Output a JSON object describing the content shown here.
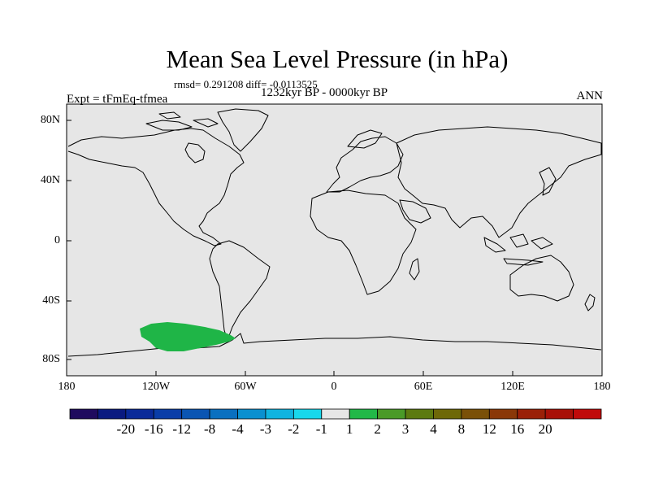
{
  "title": "Mean Sea Level Pressure (in hPa)",
  "stats": "rmsd= 0.291208 diff= -0.0113525",
  "period": "1232kyr BP - 0000kyr BP",
  "experiment": "Expt = tFmEq-tfmea",
  "season": "ANN",
  "map": {
    "projection": "cylindrical equidistant",
    "lon_range": [
      -180,
      180
    ],
    "lat_range": [
      -90,
      90
    ],
    "lat_ticks": [
      "80N",
      "40N",
      "0",
      "40S",
      "80S"
    ],
    "lon_ticks": [
      "180",
      "120W",
      "60W",
      "0",
      "60E",
      "120E",
      "180"
    ],
    "background_color": "#e6e6e6",
    "anomaly_region": {
      "description": "positive anomaly over Amundsen/Bellingshausen Sea",
      "value_bin": "1 to 2",
      "color": "#1fb547"
    }
  },
  "colorbar": {
    "labels": [
      "-20",
      "-16",
      "-12",
      "-8",
      "-4",
      "-3",
      "-2",
      "-1",
      "1",
      "2",
      "3",
      "4",
      "8",
      "12",
      "16",
      "20"
    ],
    "colors": [
      "#1f0a5e",
      "#0a1a80",
      "#0a2a99",
      "#0a3da8",
      "#0a55b3",
      "#0a70c0",
      "#0a90d0",
      "#10b4e0",
      "#18d8ec",
      "#e6e6e6",
      "#22b848",
      "#4a9a28",
      "#5c7a10",
      "#6e6808",
      "#7a5008",
      "#8a3808",
      "#9a2008",
      "#a81008",
      "#c00a0a"
    ]
  }
}
